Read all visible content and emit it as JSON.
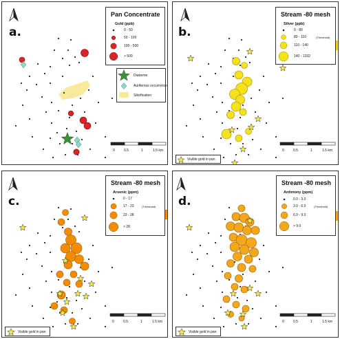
{
  "colors": {
    "dot": "#222222",
    "red": "#d62728",
    "red_stroke": "#8b0000",
    "yellow": "#f6e21a",
    "yellow_stroke": "#9a8a00",
    "orange": "#f28c00",
    "orange_stroke": "#9a5500",
    "star": "#f3e94a",
    "green_star": "#3f8f3f",
    "aqua": "#8fd8c8",
    "silic": "#f7ea9c"
  },
  "panels": {
    "a": {
      "label": "a.",
      "legend": {
        "title": "Pan Concentrate",
        "subtitle": "Gold (ppb)",
        "classes": [
          "0 - 50",
          "50 - 100",
          "100 - 500",
          "> 500"
        ],
        "features": [
          "Diatreme",
          "Auriferous occurrence",
          "Silicification"
        ]
      }
    },
    "b": {
      "label": "b.",
      "legend": {
        "title": "Stream -80 mesh",
        "subtitle": "Silver (ppb)",
        "classes": [
          "0 - 80",
          "80 - 110",
          "110 - 140",
          "140 - 1332"
        ],
        "threshold_note": "(Threshold)"
      },
      "gold_legend": "Visible gold in pan"
    },
    "c": {
      "label": "c.",
      "legend": {
        "title": "Stream -80 mesh",
        "subtitle": "Arsenic (ppm)",
        "classes": [
          "0 - 17",
          "17 - 23",
          "23 - 28",
          "> 28"
        ],
        "threshold_note": "(Threshold)"
      },
      "gold_legend": "Visible gold in pan"
    },
    "d": {
      "label": "d.",
      "legend": {
        "title": "Stream -80 mesh",
        "subtitle": "Antimony (ppm)",
        "classes": [
          "0.0 - 3.0",
          "3.0 - 6.0",
          "6.0 - 9.0",
          "> 9.0"
        ],
        "threshold_note": "(Threshold)"
      },
      "gold_legend": "Visible gold in pan"
    }
  },
  "scale_bar": {
    "labels": [
      "0",
      "0.5",
      "1",
      "1.5 km"
    ]
  }
}
